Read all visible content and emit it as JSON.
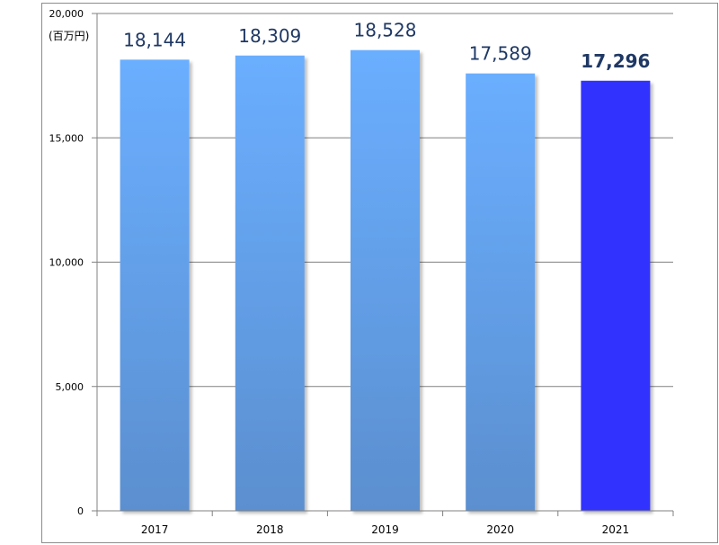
{
  "chart_data": {
    "type": "bar",
    "categories": [
      "2017",
      "2018",
      "2019",
      "2020",
      "2021"
    ],
    "values": [
      18144,
      18309,
      18528,
      17589,
      17296
    ],
    "data_labels": [
      "18,144",
      "18,309",
      "18,528",
      "17,589",
      "17,296"
    ],
    "highlight_index": 4,
    "title": "",
    "xlabel": "",
    "ylabel": "",
    "unit_label": "(百万円)",
    "ylim": [
      0,
      20000
    ],
    "yticks": [
      0,
      5000,
      10000,
      15000,
      20000
    ],
    "ytick_labels": [
      "0",
      "5,000",
      "10,000",
      "15,000",
      "20,000"
    ],
    "grid": true,
    "legend": "none",
    "colors": {
      "bar_top": "#6aaeff",
      "bar_bottom": "#5b8fcf",
      "highlight_bar": "#3333ff",
      "data_label": "#1f3864",
      "gridline": "#808080",
      "frame": "#8c8c8c"
    }
  }
}
